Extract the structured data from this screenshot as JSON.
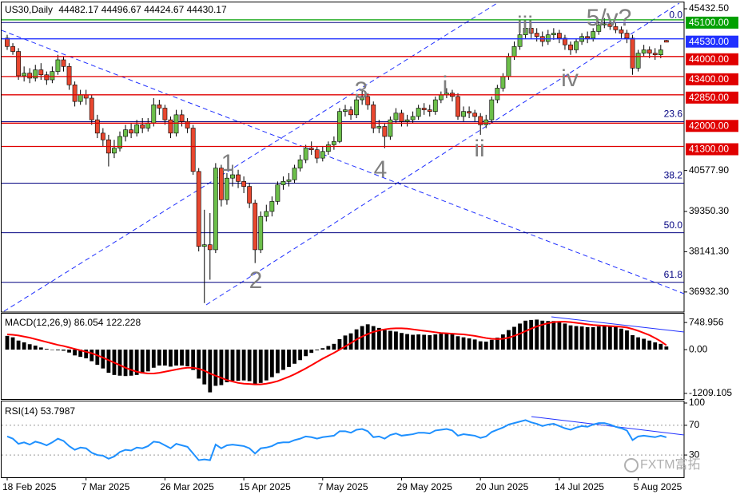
{
  "chart_data": {
    "type": "candlestick",
    "title": "US30,Daily",
    "bull_color": "#6cbf4a",
    "bear_color": "#e8472f",
    "open": [
      44550,
      44300,
      44150,
      43420,
      43500,
      43350,
      43600,
      43450,
      43300,
      43550,
      43900,
      43700,
      43150,
      42650,
      42850,
      42750,
      42100,
      41700,
      41500,
      41100,
      41250,
      41600,
      41800,
      41700,
      41950,
      41850,
      42000,
      42550,
      42450,
      42100,
      41700,
      42250,
      42050,
      41850,
      40550,
      38300,
      38350,
      38200,
      40650,
      39700,
      40350,
      40450,
      40250,
      40100,
      39600,
      38200,
      39200,
      39350,
      39650,
      40150,
      40250,
      40300,
      40650,
      40900,
      41250,
      41200,
      40950,
      41150,
      41350,
      41450,
      42350,
      42400,
      42250,
      42700,
      42800,
      42550,
      41850,
      41900,
      41600,
      42100,
      42300,
      42050,
      42100,
      42200,
      42450,
      42400,
      42350,
      42700,
      42850,
      42900,
      42800,
      42200,
      42350,
      42300,
      42200,
      41950,
      42100,
      42700,
      43050,
      43400,
      44000,
      44300,
      44650,
      44850,
      44700,
      44600,
      44450,
      44650,
      44700,
      44550,
      44350,
      44200,
      44450,
      44600,
      44550,
      44750,
      44950,
      44980,
      44900,
      44800,
      44700,
      44550,
      43650,
      44100,
      44200,
      44100,
      44050,
      44482.17
    ],
    "high": [
      44650,
      44400,
      44250,
      43700,
      43650,
      43750,
      43800,
      43550,
      43700,
      44050,
      44000,
      43800,
      43250,
      43000,
      43000,
      42850,
      42250,
      41850,
      41650,
      41500,
      41750,
      41950,
      42000,
      42100,
      42150,
      42150,
      42750,
      42700,
      42550,
      42200,
      42400,
      42400,
      42150,
      41950,
      40650,
      39400,
      39300,
      40800,
      40750,
      40500,
      40750,
      40600,
      40400,
      40200,
      39700,
      39350,
      39550,
      39800,
      40250,
      40400,
      40500,
      40750,
      41050,
      41350,
      41450,
      41300,
      41300,
      41450,
      41600,
      42450,
      42550,
      42500,
      42800,
      43000,
      42900,
      42650,
      42100,
      42000,
      42200,
      42450,
      42400,
      42250,
      42350,
      42550,
      42600,
      42550,
      42800,
      42950,
      43050,
      43000,
      42900,
      42500,
      42500,
      42400,
      42300,
      42250,
      42800,
      43150,
      43500,
      44100,
      44450,
      44750,
      45050,
      45000,
      44850,
      44750,
      44800,
      44850,
      44800,
      44650,
      44450,
      44550,
      44700,
      44750,
      44850,
      45050,
      45150,
      45100,
      45000,
      44900,
      44800,
      44650,
      44200,
      44350,
      44300,
      44250,
      44350,
      44496.67
    ],
    "low": [
      44200,
      44050,
      43300,
      43250,
      43200,
      43250,
      43300,
      43150,
      43200,
      43450,
      43550,
      43000,
      42500,
      42550,
      42550,
      41950,
      41550,
      41300,
      40700,
      40950,
      41150,
      41450,
      41550,
      41600,
      41700,
      41750,
      41900,
      42250,
      41950,
      41550,
      41600,
      41900,
      41700,
      40450,
      38150,
      36600,
      37300,
      38100,
      39500,
      39550,
      40100,
      40050,
      39900,
      39450,
      37800,
      38100,
      39050,
      39200,
      39550,
      40000,
      40100,
      40200,
      40550,
      40800,
      41050,
      40800,
      40850,
      41050,
      41200,
      41400,
      42200,
      42100,
      42150,
      42550,
      42400,
      41700,
      41700,
      41250,
      41500,
      42000,
      41900,
      41900,
      42000,
      42100,
      42250,
      42200,
      42250,
      42600,
      42750,
      42650,
      42100,
      42050,
      42150,
      42050,
      41650,
      41850,
      42000,
      42600,
      42950,
      43300,
      43900,
      44200,
      44550,
      44550,
      44450,
      44300,
      44350,
      44500,
      44400,
      44200,
      44050,
      44100,
      44350,
      44400,
      44450,
      44650,
      44850,
      44800,
      44700,
      44550,
      44400,
      43450,
      43550,
      44000,
      43950,
      43900,
      43950,
      44424.67
    ],
    "close": [
      44300,
      44150,
      43420,
      43500,
      43350,
      43600,
      43450,
      43300,
      43550,
      43900,
      43700,
      43150,
      42650,
      42850,
      42750,
      42100,
      41700,
      41500,
      41100,
      41250,
      41600,
      41800,
      41700,
      41950,
      41850,
      42000,
      42550,
      42450,
      42100,
      41700,
      42250,
      42050,
      41850,
      40550,
      38300,
      38350,
      38200,
      40650,
      39700,
      40350,
      40450,
      40250,
      40100,
      39600,
      38200,
      39200,
      39350,
      39650,
      40150,
      40250,
      40300,
      40650,
      40900,
      41250,
      41200,
      40950,
      41150,
      41350,
      41450,
      42350,
      42400,
      42250,
      42700,
      42800,
      42550,
      41850,
      41900,
      41600,
      42100,
      42300,
      42050,
      42100,
      42200,
      42450,
      42400,
      42350,
      42700,
      42850,
      42900,
      42800,
      42200,
      42350,
      42300,
      42200,
      41950,
      42100,
      42700,
      43050,
      43400,
      44000,
      44300,
      44650,
      44850,
      44700,
      44600,
      44450,
      44650,
      44700,
      44550,
      44350,
      44200,
      44450,
      44600,
      44550,
      44750,
      44950,
      44980,
      44900,
      44800,
      44700,
      44550,
      43650,
      44100,
      44200,
      44100,
      44050,
      44200,
      44430.17
    ],
    "ylim": [
      36330,
      45600
    ],
    "yticks": [
      {
        "value": 45432.5,
        "label": "45432.50"
      },
      {
        "value": 40577.9,
        "label": "40577.90"
      },
      {
        "value": 39350.3,
        "label": "39350.30"
      },
      {
        "value": 38141.3,
        "label": "38141.30"
      },
      {
        "value": 36932.3,
        "label": "36932.30"
      }
    ],
    "xticks": [
      {
        "value": 0,
        "label": "18 Feb 2025"
      },
      {
        "value": 14,
        "label": "7 Mar 2025"
      },
      {
        "value": 28,
        "label": "26 Mar 2025"
      },
      {
        "value": 42,
        "label": "15 Apr 2025"
      },
      {
        "value": 56,
        "label": "7 May 2025"
      },
      {
        "value": 70,
        "label": "29 May 2025"
      },
      {
        "value": 84,
        "label": "20 Jun 2025"
      },
      {
        "value": 98,
        "label": "14 Jul 2025"
      },
      {
        "value": 112,
        "label": "5 Aug 2025"
      }
    ],
    "price_levels": [
      {
        "value": 45100,
        "label": "45100.00",
        "color": "#00a000"
      },
      {
        "value": 44530,
        "label": "44530.00",
        "color": "#2030ff"
      },
      {
        "value": 44000,
        "label": "44000.00",
        "color": "#e00000"
      },
      {
        "value": 43400,
        "label": "43400.00",
        "color": "#e00000"
      },
      {
        "value": 42850,
        "label": "42850.00",
        "color": "#e00000"
      },
      {
        "value": 42000,
        "label": "42000.00",
        "color": "#e00000"
      },
      {
        "value": 41300,
        "label": "41300.00",
        "color": "#e00000"
      }
    ],
    "fib_levels": [
      {
        "level": {
          "value": 0,
          "label": "0.0"
        },
        "price": 45020
      },
      {
        "level": 23.6,
        "price": 42042
      },
      {
        "level": 38.2,
        "price": 40199
      },
      {
        "level": {
          "value": 50,
          "label": "50.0"
        },
        "price": 38710
      },
      {
        "level": 61.8,
        "price": 37221
      }
    ],
    "fib_color": "#000080",
    "wave_labels": [
      "1",
      "2",
      "3",
      "4",
      "i",
      "ii",
      "iii",
      "iv",
      "5/v?"
    ],
    "watermark": "FXTM富拓",
    "macd": {
      "title": "MACD(12,26,9)",
      "color": "#000000",
      "signal_color": "#ff0000",
      "ylim": [
        -1387,
        994
      ],
      "yticks": [
        748.956,
        {
          "value": 0,
          "label": "0.00"
        },
        -1209.105
      ],
      "histogram": [
        380,
        340,
        250,
        200,
        150,
        110,
        60,
        20,
        0,
        -20,
        -30,
        -80,
        -160,
        -200,
        -240,
        -320,
        -420,
        -520,
        -640,
        -700,
        -720,
        -730,
        -720,
        -700,
        -660,
        -600,
        -500,
        -440,
        -440,
        -470,
        -440,
        -440,
        -460,
        -560,
        -800,
        -960,
        -1180,
        -1000,
        -980,
        -900,
        -860,
        -860,
        -850,
        -870,
        -980,
        -920,
        -850,
        -760,
        -650,
        -560,
        -480,
        -390,
        -290,
        -180,
        -90,
        -20,
        40,
        100,
        160,
        290,
        390,
        450,
        560,
        650,
        700,
        650,
        600,
        540,
        520,
        500,
        460,
        430,
        410,
        420,
        410,
        400,
        420,
        440,
        450,
        440,
        370,
        340,
        310,
        280,
        230,
        220,
        270,
        330,
        420,
        540,
        630,
        720,
        800,
        820,
        830,
        800,
        790,
        790,
        760,
        720,
        670,
        650,
        640,
        620,
        620,
        640,
        650,
        640,
        620,
        580,
        530,
        400,
        340,
        300,
        250,
        200,
        160,
        86.054
      ],
      "signal": [
        420,
        410,
        390,
        360,
        330,
        290,
        250,
        210,
        170,
        130,
        100,
        60,
        20,
        -20,
        -60,
        -100,
        -160,
        -220,
        -290,
        -360,
        -430,
        -500,
        -560,
        -610,
        -640,
        -660,
        -660,
        -640,
        -610,
        -580,
        -550,
        -520,
        -500,
        -500,
        -530,
        -580,
        -660,
        -720,
        -780,
        -840,
        -880,
        -920,
        -940,
        -950,
        -960,
        -960,
        -940,
        -910,
        -870,
        -810,
        -750,
        -680,
        -600,
        -520,
        -430,
        -340,
        -250,
        -170,
        -90,
        0,
        90,
        180,
        280,
        360,
        430,
        490,
        530,
        560,
        580,
        590,
        590,
        580,
        560,
        540,
        520,
        500,
        480,
        460,
        450,
        440,
        430,
        420,
        400,
        380,
        350,
        320,
        300,
        290,
        300,
        330,
        380,
        440,
        510,
        580,
        640,
        690,
        730,
        760,
        770,
        770,
        760,
        740,
        720,
        700,
        680,
        670,
        660,
        650,
        640,
        630,
        610,
        570,
        520,
        460,
        400,
        320,
        230,
        122.228
      ]
    },
    "rsi": {
      "title": "RSI(14)",
      "color": "#1e90ff",
      "ylim": [
        0,
        100
      ],
      "yticks": [
        100,
        70,
        30
      ],
      "values": [
        55,
        52,
        45,
        47,
        44,
        48,
        46,
        43,
        47,
        52,
        49,
        42,
        37,
        40,
        39,
        33,
        30,
        29,
        25,
        28,
        34,
        37,
        36,
        40,
        39,
        42,
        48,
        47,
        43,
        39,
        45,
        43,
        41,
        32,
        23,
        24,
        23,
        44,
        39,
        43,
        44,
        43,
        42,
        39,
        32,
        39,
        40,
        42,
        46,
        47,
        47,
        50,
        52,
        55,
        54,
        52,
        54,
        55,
        56,
        62,
        62,
        60,
        64,
        65,
        62,
        54,
        55,
        52,
        57,
        59,
        56,
        57,
        58,
        60,
        60,
        59,
        63,
        64,
        65,
        63,
        56,
        58,
        57,
        56,
        53,
        55,
        61,
        64,
        67,
        71,
        73,
        75,
        77,
        74,
        72,
        69,
        71,
        72,
        69,
        66,
        64,
        67,
        69,
        68,
        71,
        73,
        73,
        71,
        68,
        66,
        63,
        50,
        55,
        56,
        55,
        54,
        56,
        53.7987
      ]
    }
  }
}
